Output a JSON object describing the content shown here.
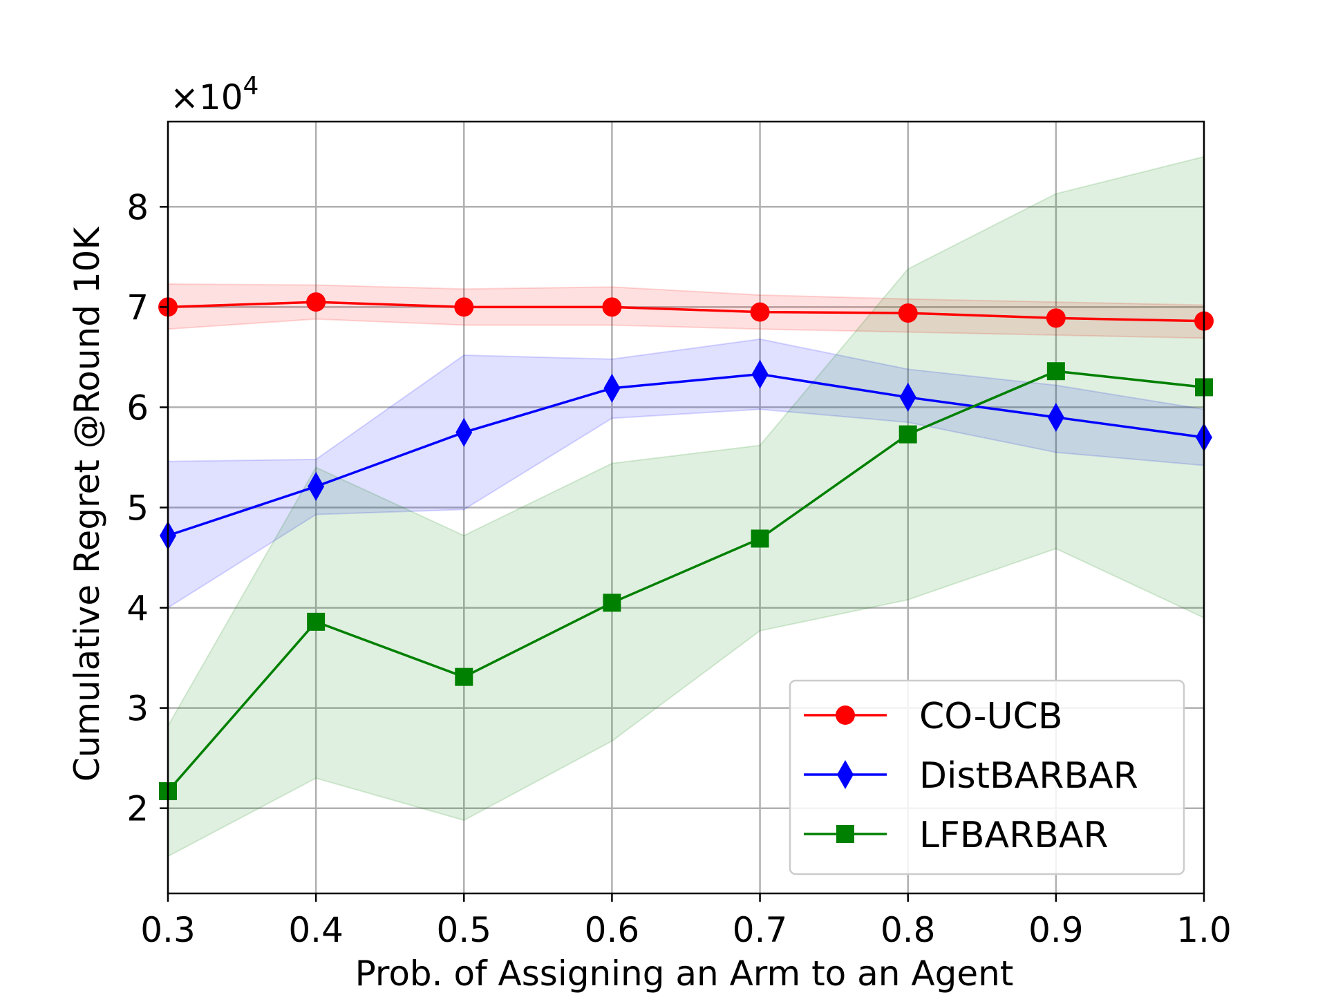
{
  "chart_data": {
    "type": "line",
    "xlabel": "Prob. of Assigning an Arm to an Agent",
    "ylabel": "Cumulative Regret @Round 10K",
    "y_multiplier_label": "×10",
    "y_multiplier_exponent": "4",
    "xlim": [
      0.3,
      1.0
    ],
    "ylim": [
      1.15,
      8.85
    ],
    "x_ticks": [
      0.3,
      0.4,
      0.5,
      0.6,
      0.7,
      0.8,
      0.9,
      1.0
    ],
    "x_tick_labels": [
      "0.3",
      "0.4",
      "0.5",
      "0.6",
      "0.7",
      "0.8",
      "0.9",
      "1.0"
    ],
    "y_ticks": [
      2,
      3,
      4,
      5,
      6,
      7,
      8
    ],
    "y_tick_labels": [
      "2",
      "3",
      "4",
      "5",
      "6",
      "7",
      "8"
    ],
    "grid": true,
    "legend_position": "lower-right",
    "x": [
      0.3,
      0.4,
      0.5,
      0.6,
      0.7,
      0.8,
      0.9,
      1.0
    ],
    "series": [
      {
        "name": "CO-UCB",
        "color": "#ff0000",
        "marker": "circle",
        "values": [
          7.0,
          7.05,
          7.0,
          7.0,
          6.95,
          6.94,
          6.89,
          6.86
        ],
        "lower": [
          6.78,
          6.88,
          6.82,
          6.82,
          6.78,
          6.75,
          6.72,
          6.69
        ],
        "upper": [
          7.23,
          7.22,
          7.18,
          7.2,
          7.12,
          7.08,
          7.05,
          7.02
        ]
      },
      {
        "name": "DistBARBAR",
        "color": "#0000ff",
        "marker": "diamond",
        "values": [
          4.72,
          5.21,
          5.75,
          6.19,
          6.33,
          6.1,
          5.9,
          5.7
        ],
        "lower": [
          4.0,
          4.93,
          4.98,
          5.89,
          5.98,
          5.85,
          5.55,
          5.42
        ],
        "upper": [
          5.46,
          5.48,
          6.52,
          6.48,
          6.68,
          6.38,
          6.22,
          5.98
        ]
      },
      {
        "name": "LFBARBAR",
        "color": "#008000",
        "marker": "square",
        "values": [
          2.17,
          3.86,
          3.31,
          4.05,
          4.69,
          5.73,
          6.36,
          6.2
        ],
        "lower": [
          1.52,
          2.3,
          1.88,
          2.67,
          3.77,
          4.08,
          4.59,
          3.9
        ],
        "upper": [
          2.82,
          5.4,
          4.72,
          5.44,
          5.62,
          7.38,
          8.13,
          8.5
        ]
      }
    ]
  }
}
